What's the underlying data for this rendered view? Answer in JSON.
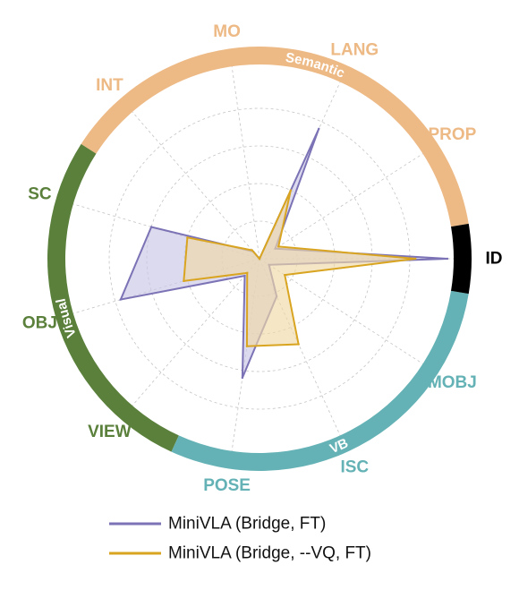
{
  "chart_data": {
    "type": "radar",
    "axes": [
      "ID",
      "PROP",
      "LANG",
      "MO",
      "INT",
      "SC",
      "OBJ",
      "VIEW",
      "POSE",
      "ISC",
      "MOBJ"
    ],
    "axis_colors": [
      "#000000",
      "#EDB985",
      "#EDB985",
      "#EDB985",
      "#EDB985",
      "#5A803B",
      "#5A803B",
      "#5A803B",
      "#64B2B5",
      "#64B2B5",
      "#64B2B5"
    ],
    "groups": [
      {
        "name": "Semantic",
        "color": "#EDB985",
        "axes": [
          "PROP",
          "LANG",
          "MO",
          "INT"
        ]
      },
      {
        "name": "Visual",
        "color": "#5A803B",
        "axes": [
          "SC",
          "OBJ",
          "VIEW"
        ]
      },
      {
        "name": "VB",
        "color": "#64B2B5",
        "axes": [
          "POSE",
          "ISC",
          "MOBJ"
        ]
      },
      {
        "name": "",
        "color": "#000000",
        "axes": [
          "ID"
        ]
      }
    ],
    "rlim": [
      0,
      1
    ],
    "grid": true,
    "legend_position": "bottom",
    "series": [
      {
        "name": "MiniVLA (Bridge, FT)",
        "color": "#7B73B5",
        "fill": "#C9C6E5",
        "values": [
          1.0,
          0.1,
          0.76,
          0.0,
          0.05,
          0.6,
          0.77,
          0.12,
          0.64,
          0.22,
          0.06
        ]
      },
      {
        "name": "MiniVLA (Bridge, --VQ, FT)",
        "color": "#D9A521",
        "fill": "#EFD9A8",
        "values": [
          0.83,
          0.12,
          0.4,
          0.0,
          0.06,
          0.4,
          0.42,
          0.1,
          0.47,
          0.5,
          0.16
        ]
      }
    ]
  }
}
